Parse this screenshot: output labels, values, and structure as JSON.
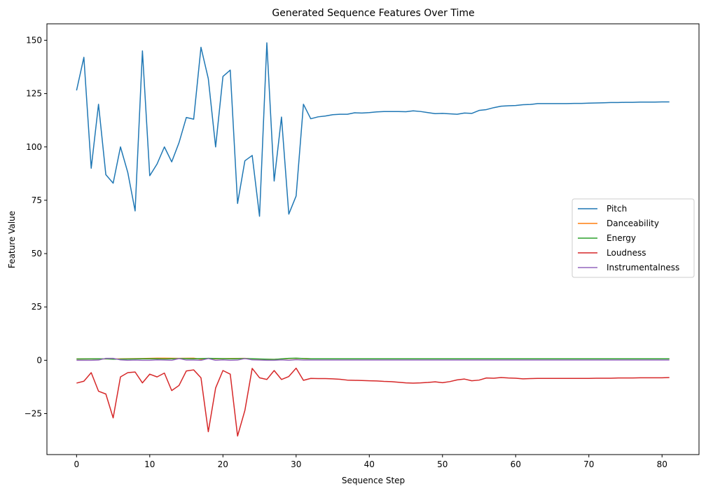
{
  "chart_data": {
    "type": "line",
    "title": "Generated Sequence Features Over Time",
    "xlabel": "Sequence Step",
    "ylabel": "Feature Value",
    "xlim": [
      -4.05,
      85.05
    ],
    "ylim": [
      -44.2,
      157.7
    ],
    "xticks": [
      0,
      10,
      20,
      30,
      40,
      50,
      60,
      70,
      80
    ],
    "yticks": [
      -25,
      0,
      25,
      50,
      75,
      100,
      125,
      150
    ],
    "grid": false,
    "legend": "center-right",
    "series": [
      {
        "name": "Pitch",
        "color": "#1f77b4",
        "x": [
          0,
          1,
          2,
          3,
          4,
          5,
          6,
          7,
          8,
          9,
          10,
          11,
          12,
          13,
          14,
          15,
          16,
          17,
          18,
          19,
          20,
          21,
          22,
          23,
          24,
          25,
          26,
          27,
          28,
          29,
          30,
          31,
          32,
          33,
          34,
          35,
          36,
          37,
          38,
          39,
          40,
          41,
          42,
          43,
          44,
          45,
          46,
          47,
          48,
          49,
          50,
          51,
          52,
          53,
          54,
          55,
          56,
          57,
          58,
          59,
          60,
          61,
          62,
          63,
          64,
          65,
          66,
          67,
          68,
          69,
          70,
          71,
          72,
          73,
          74,
          75,
          76,
          77,
          78,
          79,
          80,
          81
        ],
        "values": [
          126.5,
          142,
          90,
          120,
          87,
          83,
          100,
          88,
          70,
          145,
          86.5,
          92,
          100,
          93,
          102,
          113.8,
          113,
          146.7,
          132,
          100,
          133,
          136,
          73.5,
          93.5,
          96,
          67.5,
          148.8,
          84,
          114,
          68.5,
          77,
          120,
          113.2,
          114.1,
          114.5,
          115.1,
          115.3,
          115.3,
          116,
          115.9,
          116.1,
          116.4,
          116.6,
          116.6,
          116.6,
          116.5,
          116.9,
          116.6,
          116.1,
          115.6,
          115.7,
          115.5,
          115.3,
          115.9,
          115.7,
          117.1,
          117.5,
          118.4,
          119.1,
          119.3,
          119.4,
          119.8,
          119.9,
          120.3,
          120.3,
          120.3,
          120.3,
          120.3,
          120.4,
          120.4,
          120.5,
          120.6,
          120.7,
          120.8,
          120.8,
          120.9,
          120.9,
          121,
          121,
          121,
          121.1,
          121.1
        ]
      },
      {
        "name": "Danceability",
        "color": "#ff7f0e",
        "x": [
          0,
          4,
          5,
          9,
          11,
          12,
          14,
          16,
          17,
          18,
          19,
          21,
          23,
          24,
          27,
          29,
          30,
          31,
          32,
          81
        ],
        "values": [
          0.6,
          0.7,
          0.6,
          0.8,
          1,
          1,
          0.9,
          1,
          0.5,
          0.9,
          0.7,
          0.8,
          0.9,
          0.6,
          0.4,
          0.8,
          0.9,
          0.8,
          0.7,
          0.7
        ]
      },
      {
        "name": "Energy",
        "color": "#2ca02c",
        "x": [
          0,
          4,
          5,
          9,
          11,
          12,
          14,
          16,
          18,
          21,
          23,
          27,
          29,
          30,
          31,
          32,
          81
        ],
        "values": [
          0.6,
          0.7,
          0.5,
          0.7,
          0.7,
          0.6,
          0.8,
          0.7,
          0.9,
          0.7,
          0.8,
          0.4,
          0.9,
          1,
          0.8,
          0.7,
          0.7
        ]
      },
      {
        "name": "Loudness",
        "color": "#d62728",
        "x": [
          0,
          1,
          2,
          3,
          4,
          5,
          6,
          7,
          8,
          9,
          10,
          11,
          12,
          13,
          14,
          15,
          16,
          17,
          18,
          19,
          20,
          21,
          22,
          23,
          24,
          25,
          26,
          27,
          28,
          29,
          30,
          31,
          32,
          33,
          34,
          35,
          36,
          37,
          38,
          39,
          40,
          41,
          42,
          43,
          44,
          45,
          46,
          47,
          48,
          49,
          50,
          51,
          52,
          53,
          54,
          55,
          56,
          57,
          58,
          59,
          60,
          61,
          62,
          63,
          64,
          65,
          66,
          67,
          68,
          69,
          70,
          71,
          72,
          73,
          74,
          75,
          76,
          77,
          78,
          79,
          80,
          81
        ],
        "values": [
          -10.7,
          -9.8,
          -5.8,
          -14.5,
          -15.8,
          -27,
          -7.8,
          -5.8,
          -5.5,
          -10.6,
          -6.5,
          -7.8,
          -6,
          -14.2,
          -11.8,
          -5,
          -4.5,
          -8.2,
          -33.5,
          -13,
          -4.8,
          -6.5,
          -35.5,
          -23.5,
          -3.8,
          -8.2,
          -9,
          -4.8,
          -9,
          -7.6,
          -3.7,
          -9.4,
          -8.5,
          -8.6,
          -8.6,
          -8.7,
          -8.9,
          -9.3,
          -9.4,
          -9.5,
          -9.6,
          -9.7,
          -9.9,
          -10,
          -10.3,
          -10.6,
          -10.7,
          -10.6,
          -10.4,
          -10.1,
          -10.5,
          -10,
          -9.2,
          -8.8,
          -9.6,
          -9.3,
          -8.3,
          -8.4,
          -8.1,
          -8.3,
          -8.4,
          -8.7,
          -8.6,
          -8.5,
          -8.5,
          -8.5,
          -8.5,
          -8.5,
          -8.5,
          -8.5,
          -8.5,
          -8.4,
          -8.4,
          -8.4,
          -8.3,
          -8.3,
          -8.3,
          -8.2,
          -8.2,
          -8.2,
          -8.2,
          -8.1
        ]
      },
      {
        "name": "Instrumentalness",
        "color": "#9467bd",
        "x": [
          0,
          1,
          2,
          3,
          4,
          5,
          6,
          7,
          8,
          9,
          10,
          11,
          12,
          13,
          14,
          15,
          16,
          17,
          18,
          19,
          20,
          21,
          22,
          23,
          24,
          25,
          26,
          27,
          28,
          29,
          30,
          31,
          32,
          81
        ],
        "values": [
          0,
          0,
          0,
          0.1,
          0.9,
          0.9,
          0.2,
          0,
          0.1,
          0,
          0,
          0.2,
          0.1,
          0,
          0.8,
          0.1,
          0.1,
          0,
          0.8,
          0,
          0.2,
          0,
          0.1,
          0.8,
          0.2,
          0.1,
          0,
          0,
          0.2,
          0,
          0.3,
          0.1,
          0.1,
          0.1
        ]
      }
    ]
  }
}
